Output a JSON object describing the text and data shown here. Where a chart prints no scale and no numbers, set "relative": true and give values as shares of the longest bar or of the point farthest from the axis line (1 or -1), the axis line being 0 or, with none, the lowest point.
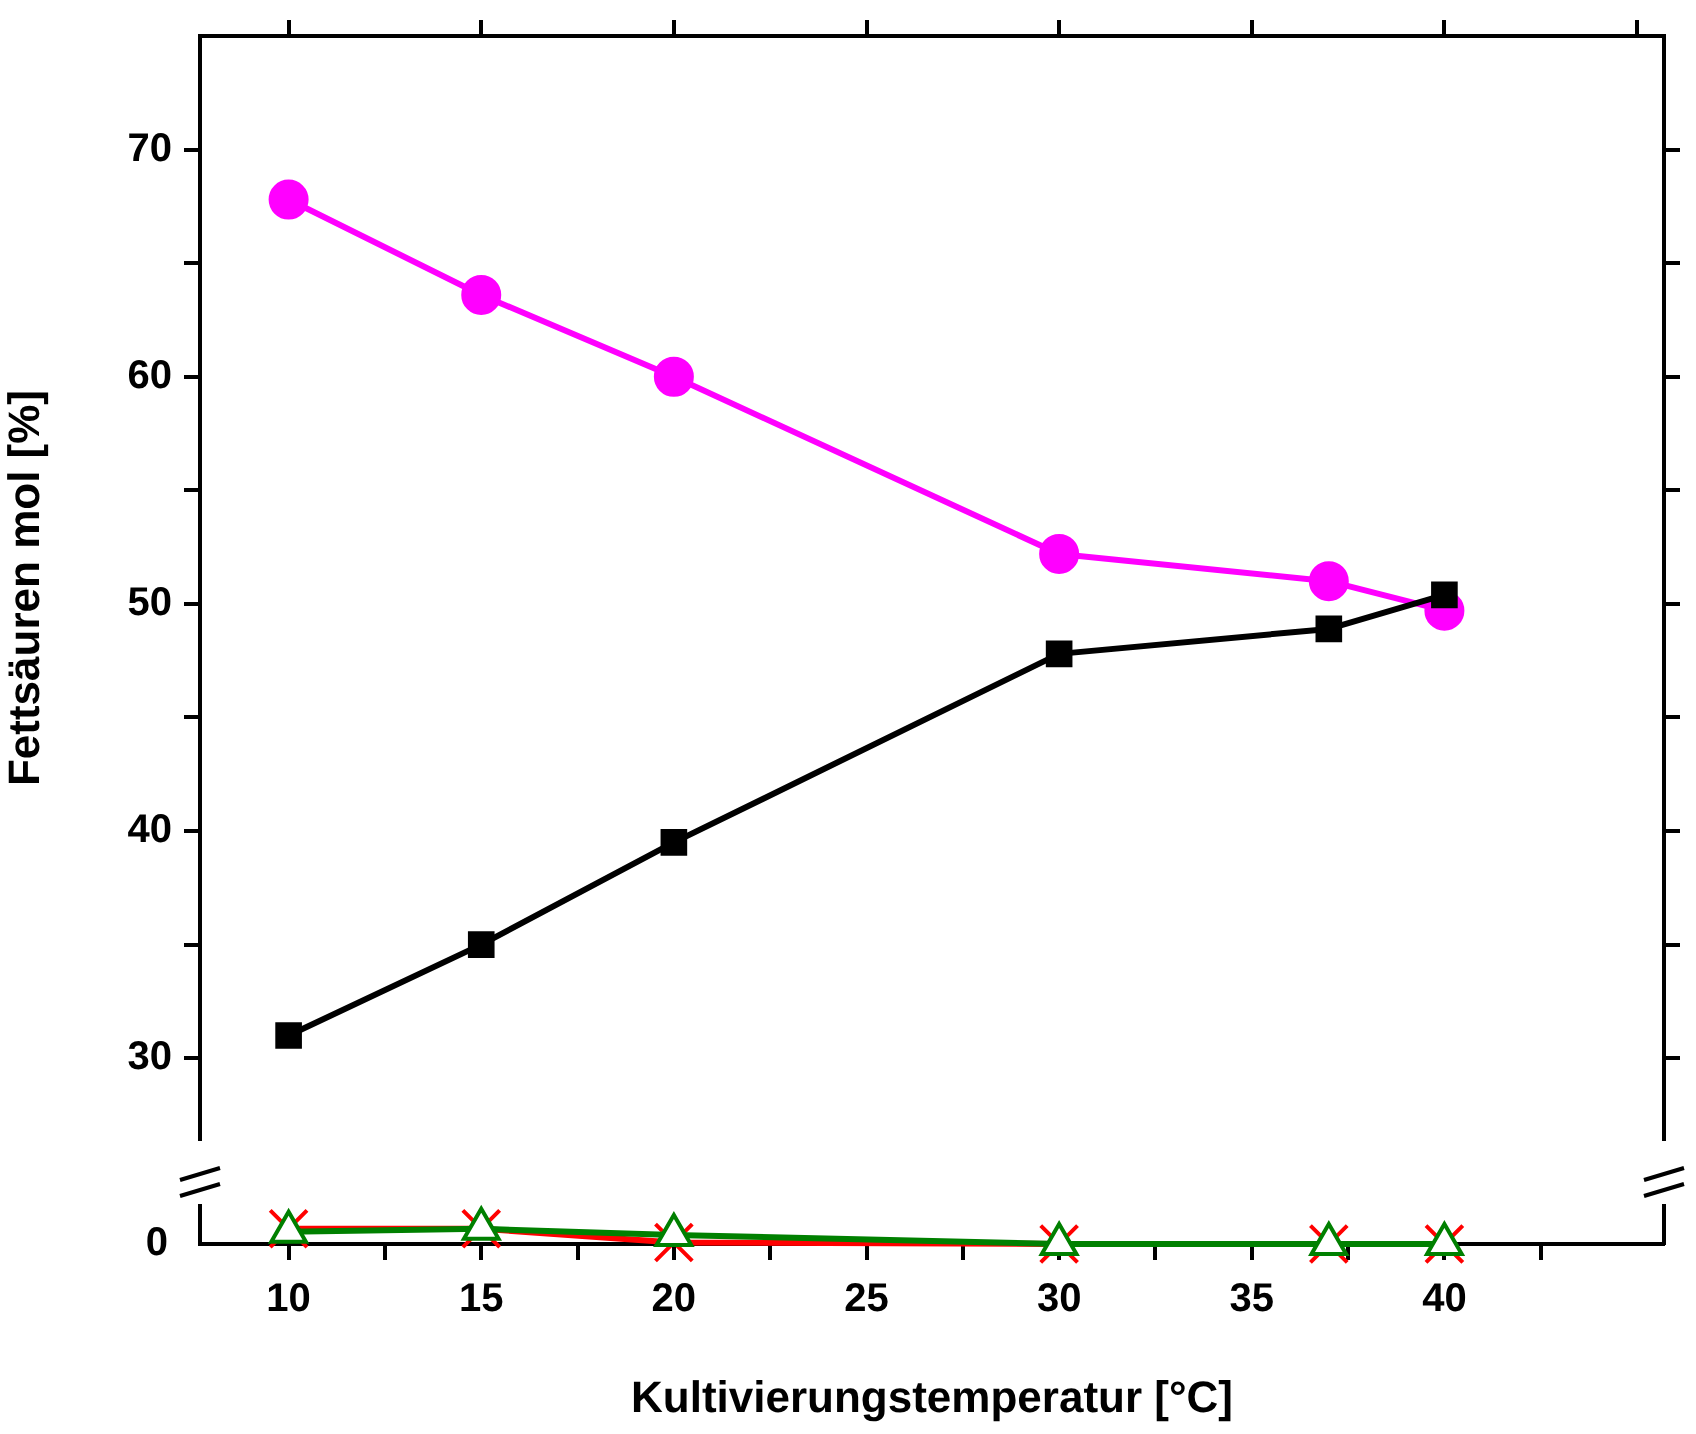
{
  "chart_data": [
    {
      "type": "line",
      "ylabel": "Fettsäuren mol [%]",
      "x": [
        10,
        15,
        20,
        30,
        37,
        40
      ],
      "xlim": [
        7.7,
        45.7
      ],
      "xticks": [
        {
          "value": 10,
          "label": null
        },
        {
          "value": 15,
          "label": null
        },
        {
          "value": 20,
          "label": null
        },
        {
          "value": 25,
          "label": null
        },
        {
          "value": 30,
          "label": null
        },
        {
          "value": 35,
          "label": null
        },
        {
          "value": 40,
          "label": null
        },
        {
          "value": 45,
          "label": null
        }
      ],
      "ylim": [
        26.4,
        75
      ],
      "yticks": [
        30,
        {
          "value": 35,
          "label": null
        },
        40,
        {
          "value": 45,
          "label": null
        },
        50,
        {
          "value": 55,
          "label": null
        },
        60,
        {
          "value": 65,
          "label": null
        },
        70
      ],
      "tick_labels": "y",
      "grid": false,
      "legend": false,
      "series": [
        {
          "color": "#000000",
          "marker": "square",
          "values": [
            31.0,
            35.0,
            39.5,
            47.8,
            48.9,
            50.4
          ]
        },
        {
          "color": "#ff00ff",
          "marker": "circle",
          "values": [
            67.8,
            63.6,
            60.0,
            52.2,
            51.0,
            49.7
          ]
        }
      ]
    },
    {
      "type": "line",
      "xlabel": "Kultivierungstemperatur [°C]",
      "x": [
        10,
        15,
        20,
        30,
        37,
        40
      ],
      "xlim": [
        7.7,
        45.7
      ],
      "xticks": [
        10,
        {
          "value": 12.5,
          "label": null
        },
        15,
        {
          "value": 17.5,
          "label": null
        },
        20,
        {
          "value": 22.5,
          "label": null
        },
        25,
        {
          "value": 27.5,
          "label": null
        },
        30,
        {
          "value": 32.5,
          "label": null
        },
        35,
        {
          "value": 37.5,
          "label": null
        },
        40,
        {
          "value": 42.5,
          "label": null
        }
      ],
      "relative": true,
      "annotations": [
        "0"
      ],
      "grid": false,
      "legend": false,
      "series": [
        {
          "color": "#008000",
          "marker": "triangle",
          "values": [
            0.8,
            1,
            0.6,
            0,
            0,
            0
          ]
        },
        {
          "color": "#ff0000",
          "marker": "cross",
          "values": [
            1,
            1,
            0.1,
            0,
            0,
            0
          ]
        }
      ]
    }
  ]
}
